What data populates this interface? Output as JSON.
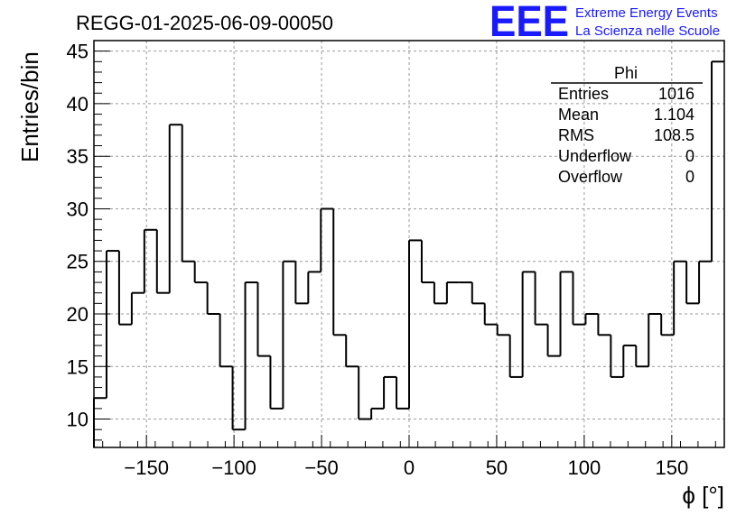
{
  "logo": {
    "mark": "EEE",
    "line1": "Extreme Energy Events",
    "line2": "La Scienza nelle Scuole",
    "color": "#1a1aff"
  },
  "chart_data": {
    "type": "histogram",
    "title": "REGG-01-2025-06-09-00050",
    "xlabel": "ϕ [°]",
    "ylabel": "Entries/bin",
    "xlim": [
      -180,
      180
    ],
    "ylim": [
      7.3,
      46
    ],
    "bin_width": 7.2,
    "bin_edges_start": -180,
    "xticks": [
      -150,
      -100,
      -50,
      0,
      50,
      100,
      150
    ],
    "xtick_labels": [
      "−150",
      "−100",
      "−50",
      "0",
      "50",
      "100",
      "150"
    ],
    "yticks": [
      10,
      15,
      20,
      25,
      30,
      35,
      40,
      45
    ],
    "grid": true,
    "line_color": "#000000",
    "values": [
      12,
      26,
      19,
      22,
      28,
      22,
      38,
      25,
      23,
      20,
      15,
      9,
      23,
      16,
      11,
      25,
      21,
      24,
      30,
      18,
      15,
      10,
      11,
      14,
      11,
      27,
      23,
      21,
      23,
      23,
      21,
      19,
      18,
      14,
      24,
      19,
      16,
      24,
      19,
      20,
      18,
      14,
      17,
      15,
      20,
      18,
      25,
      21,
      25,
      44
    ],
    "stats": {
      "name": "Phi",
      "rows": [
        {
          "label": "Entries",
          "value": "1016"
        },
        {
          "label": "Mean",
          "value": "1.104"
        },
        {
          "label": "RMS",
          "value": "108.5"
        },
        {
          "label": "Underflow",
          "value": "0"
        },
        {
          "label": "Overflow",
          "value": "0"
        }
      ],
      "placement": "top-right"
    }
  }
}
